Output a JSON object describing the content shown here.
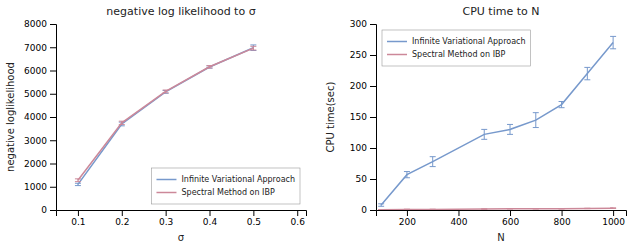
{
  "chart_data": [
    {
      "type": "line",
      "title": "negative log likelihood to σ",
      "xlabel": "σ",
      "ylabel": "negative loglikelihood",
      "x": [
        0.1,
        0.2,
        0.3,
        0.4,
        0.5
      ],
      "series": [
        {
          "name": "Infinite Variational Approach",
          "color": "#7799cc",
          "values": [
            1100,
            3700,
            5080,
            6150,
            6980
          ],
          "errors": [
            50,
            80,
            60,
            50,
            120
          ]
        },
        {
          "name": "Spectral Method on IBP",
          "color": "#cc8899",
          "values": [
            1280,
            3750,
            5100,
            6160,
            6960
          ],
          "errors": [
            60,
            70,
            60,
            50,
            80
          ]
        }
      ],
      "xlim": [
        0.05,
        0.62
      ],
      "ylim": [
        0,
        8000
      ],
      "xticks": [
        0.1,
        0.2,
        0.3,
        0.4,
        0.5,
        0.6
      ],
      "yticks": [
        0,
        1000,
        2000,
        3000,
        4000,
        5000,
        6000,
        7000,
        8000
      ],
      "grid": false,
      "legend": "lower right"
    },
    {
      "type": "line",
      "title": "CPU time to N",
      "xlabel": "N",
      "ylabel": "CPU time(sec)",
      "x": [
        100,
        200,
        300,
        500,
        600,
        700,
        800,
        900,
        1000
      ],
      "series": [
        {
          "name": "Infinite Variational Approach",
          "color": "#7799cc",
          "values": [
            8,
            57,
            78,
            122,
            130,
            145,
            170,
            220,
            270
          ],
          "errors": [
            2,
            5,
            8,
            8,
            8,
            12,
            5,
            10,
            10
          ]
        },
        {
          "name": "Spectral Method on IBP",
          "color": "#cc8899",
          "values": [
            0.5,
            1,
            1,
            1.5,
            2,
            2,
            2,
            2.5,
            3
          ],
          "errors": [
            0.2,
            0.3,
            0.3,
            0.3,
            0.3,
            0.3,
            0.3,
            0.3,
            0.5
          ]
        }
      ],
      "xlim": [
        80,
        1050
      ],
      "ylim": [
        0,
        300
      ],
      "xticks": [
        200,
        400,
        600,
        800,
        1000
      ],
      "yticks": [
        0,
        50,
        100,
        150,
        200,
        250,
        300
      ],
      "grid": false,
      "legend": "upper left"
    }
  ]
}
